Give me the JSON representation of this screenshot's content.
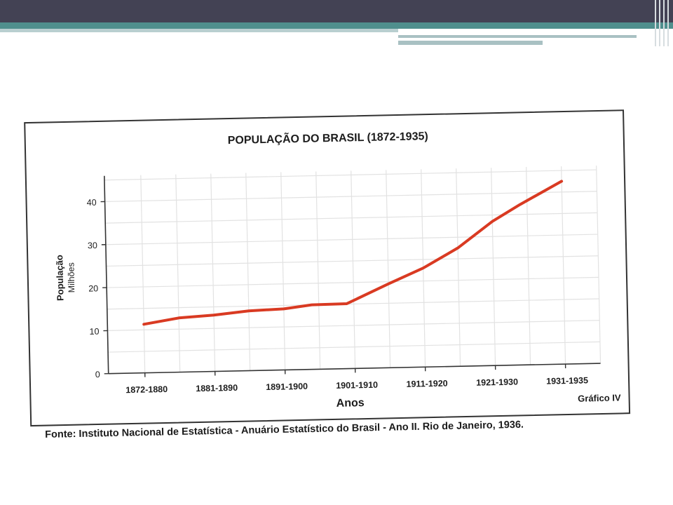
{
  "chart_data": {
    "type": "line",
    "title": "POPULAÇÃO DO BRASIL (1872-1935)",
    "xlabel": "Anos",
    "ylabel": "População",
    "ylabel_unit": "Milhões",
    "categories": [
      "1872-1880",
      "1881-1890",
      "1891-1900",
      "1901-1910",
      "1911-1920",
      "1921-1930",
      "1931-1935"
    ],
    "ylim": [
      0,
      45
    ],
    "yticks": [
      0,
      10,
      20,
      30,
      40
    ],
    "grid": true,
    "line_color": "#d93a22",
    "series": [
      {
        "x": [
          0,
          0.5,
          1,
          1.5,
          2,
          2.4,
          2.9,
          3.5,
          4,
          4.5,
          5,
          5.4,
          6
        ],
        "values": [
          11.3,
          12.6,
          13.1,
          13.9,
          14.2,
          15.0,
          15.1,
          19.5,
          23.0,
          27.5,
          33.5,
          37.3,
          42.5
        ]
      }
    ],
    "corner_label": "Gráfico IV",
    "source": "Fonte: Instituto Nacional de Estatística - Anuário Estatístico do Brasil - Ano II. Rio de Janeiro, 1936."
  }
}
